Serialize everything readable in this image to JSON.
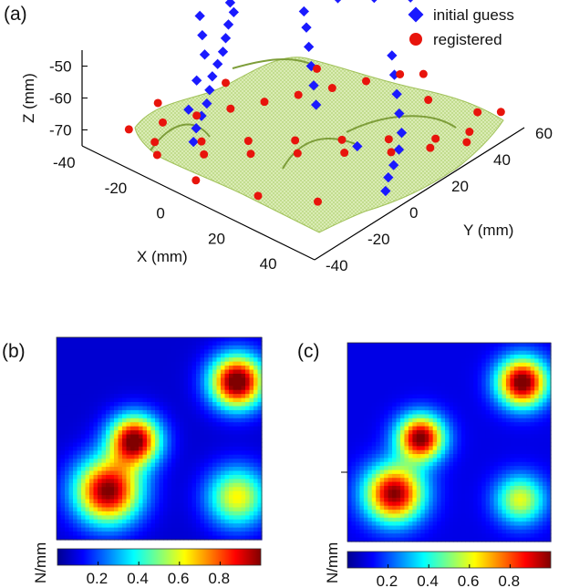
{
  "panels": {
    "a": {
      "label": "(a)"
    },
    "b": {
      "label": "(b)"
    },
    "c": {
      "label": "(c)"
    }
  },
  "chart_data": [
    {
      "type": "scatter",
      "subtype": "3d-scatter-with-surface",
      "title": "",
      "xlabel": "X (mm)",
      "ylabel": "Y (mm)",
      "zlabel": "Z (mm)",
      "xlim": [
        -40,
        50
      ],
      "ylim": [
        -40,
        60
      ],
      "zlim": [
        -75,
        -45
      ],
      "x_ticks": [
        "-40",
        "-20",
        "0",
        "20",
        "40"
      ],
      "y_ticks": [
        "-40",
        "-20",
        "0",
        "20",
        "40",
        "60"
      ],
      "z_ticks": [
        "-50",
        "-60",
        "-70"
      ],
      "legend": {
        "placement": "top-right",
        "entries": [
          "initial guess",
          "registered"
        ]
      },
      "colors": {
        "initial_guess": "#1a1aff",
        "registered": "#e8140c",
        "surface": "#b5d36e"
      },
      "series": [
        {
          "name": "initial guess",
          "marker": "diamond",
          "points": [
            [
              -40,
              30,
              -50
            ],
            [
              -38,
              28,
              -51
            ],
            [
              -35,
              25,
              -52
            ],
            [
              -33,
              22,
              -53
            ],
            [
              -30,
              20,
              -54
            ],
            [
              -28,
              15,
              -55
            ],
            [
              -25,
              10,
              -56
            ],
            [
              -22,
              5,
              -57
            ],
            [
              -20,
              0,
              -58
            ],
            [
              -18,
              -5,
              -59
            ],
            [
              -15,
              -10,
              -60
            ],
            [
              -12,
              -15,
              -61
            ],
            [
              -10,
              -20,
              -62
            ],
            [
              -8,
              -25,
              -63
            ],
            [
              -5,
              -30,
              -64
            ],
            [
              -35,
              10,
              -53
            ],
            [
              -30,
              5,
              -55
            ],
            [
              -25,
              0,
              -57
            ],
            [
              -20,
              -10,
              -59
            ],
            [
              -15,
              -20,
              -62
            ],
            [
              -10,
              30,
              -55
            ],
            [
              -5,
              25,
              -57
            ],
            [
              0,
              20,
              -59
            ],
            [
              5,
              15,
              -61
            ],
            [
              10,
              10,
              -63
            ],
            [
              15,
              40,
              -58
            ],
            [
              20,
              35,
              -60
            ],
            [
              25,
              30,
              -62
            ],
            [
              30,
              25,
              -64
            ],
            [
              35,
              20,
              -66
            ],
            [
              -20,
              40,
              -52
            ],
            [
              -15,
              35,
              -54
            ],
            [
              -10,
              45,
              -52
            ],
            [
              0,
              50,
              -50
            ],
            [
              10,
              55,
              -48
            ],
            [
              40,
              10,
              -70
            ],
            [
              42,
              5,
              -71
            ],
            [
              45,
              0,
              -72
            ],
            [
              38,
              15,
              -68
            ],
            [
              30,
              5,
              -66
            ]
          ]
        },
        {
          "name": "registered",
          "marker": "circle",
          "points": [
            [
              -30,
              -30,
              -70
            ],
            [
              -25,
              -20,
              -70
            ],
            [
              -20,
              -10,
              -70
            ],
            [
              -15,
              0,
              -70
            ],
            [
              -10,
              10,
              -70
            ],
            [
              -5,
              20,
              -70
            ],
            [
              0,
              30,
              -70
            ],
            [
              5,
              40,
              -70
            ],
            [
              10,
              50,
              -70
            ],
            [
              15,
              55,
              -70
            ],
            [
              -20,
              -30,
              -70
            ],
            [
              -10,
              -20,
              -70
            ],
            [
              0,
              -10,
              -70
            ],
            [
              10,
              0,
              -70
            ],
            [
              20,
              10,
              -70
            ],
            [
              30,
              20,
              -70
            ],
            [
              40,
              30,
              -70
            ],
            [
              45,
              40,
              -70
            ],
            [
              -15,
              -35,
              -70
            ],
            [
              -5,
              -25,
              -70
            ],
            [
              5,
              -15,
              -70
            ],
            [
              15,
              -5,
              -70
            ],
            [
              25,
              5,
              -70
            ],
            [
              35,
              15,
              -70
            ],
            [
              42,
              25,
              -70
            ],
            [
              48,
              35,
              -70
            ],
            [
              -35,
              -10,
              -72
            ],
            [
              -25,
              10,
              -70
            ],
            [
              35,
              -20,
              -71
            ],
            [
              40,
              50,
              -70
            ],
            [
              20,
              -30,
              -71
            ],
            [
              -10,
              35,
              -70
            ],
            [
              25,
              45,
              -70
            ],
            [
              0,
              -35,
              -72
            ],
            [
              45,
              55,
              -70
            ]
          ]
        }
      ],
      "surface": {
        "name": "surface",
        "style": "mesh",
        "z_range": [
          -72,
          -58
        ]
      }
    },
    {
      "type": "heatmap",
      "panel": "b",
      "colormap": "jet",
      "grid_size": [
        50,
        50
      ],
      "peaks": [
        {
          "x": 0.88,
          "y": 0.22,
          "amplitude": 1.0,
          "sigma": 0.09
        },
        {
          "x": 0.38,
          "y": 0.51,
          "amplitude": 0.95,
          "sigma": 0.085
        },
        {
          "x": 0.25,
          "y": 0.76,
          "amplitude": 0.93,
          "sigma": 0.11
        },
        {
          "x": 0.88,
          "y": 0.79,
          "amplitude": 0.55,
          "sigma": 0.1
        }
      ],
      "colorbar": {
        "label": "N/mm",
        "ticks": [
          "0.2",
          "0.4",
          "0.6",
          "0.8"
        ],
        "range": [
          0,
          1
        ]
      }
    },
    {
      "type": "heatmap",
      "panel": "c",
      "colormap": "jet",
      "grid_size": [
        50,
        50
      ],
      "peaks": [
        {
          "x": 0.86,
          "y": 0.2,
          "amplitude": 0.95,
          "sigma": 0.085
        },
        {
          "x": 0.36,
          "y": 0.48,
          "amplitude": 0.92,
          "sigma": 0.08
        },
        {
          "x": 0.23,
          "y": 0.76,
          "amplitude": 0.9,
          "sigma": 0.1
        },
        {
          "x": 0.85,
          "y": 0.79,
          "amplitude": 0.5,
          "sigma": 0.085
        }
      ],
      "colorbar": {
        "label": "N/mm",
        "ticks": [
          "0.2",
          "0.4",
          "0.6",
          "0.8"
        ],
        "range": [
          0,
          1
        ]
      }
    }
  ]
}
